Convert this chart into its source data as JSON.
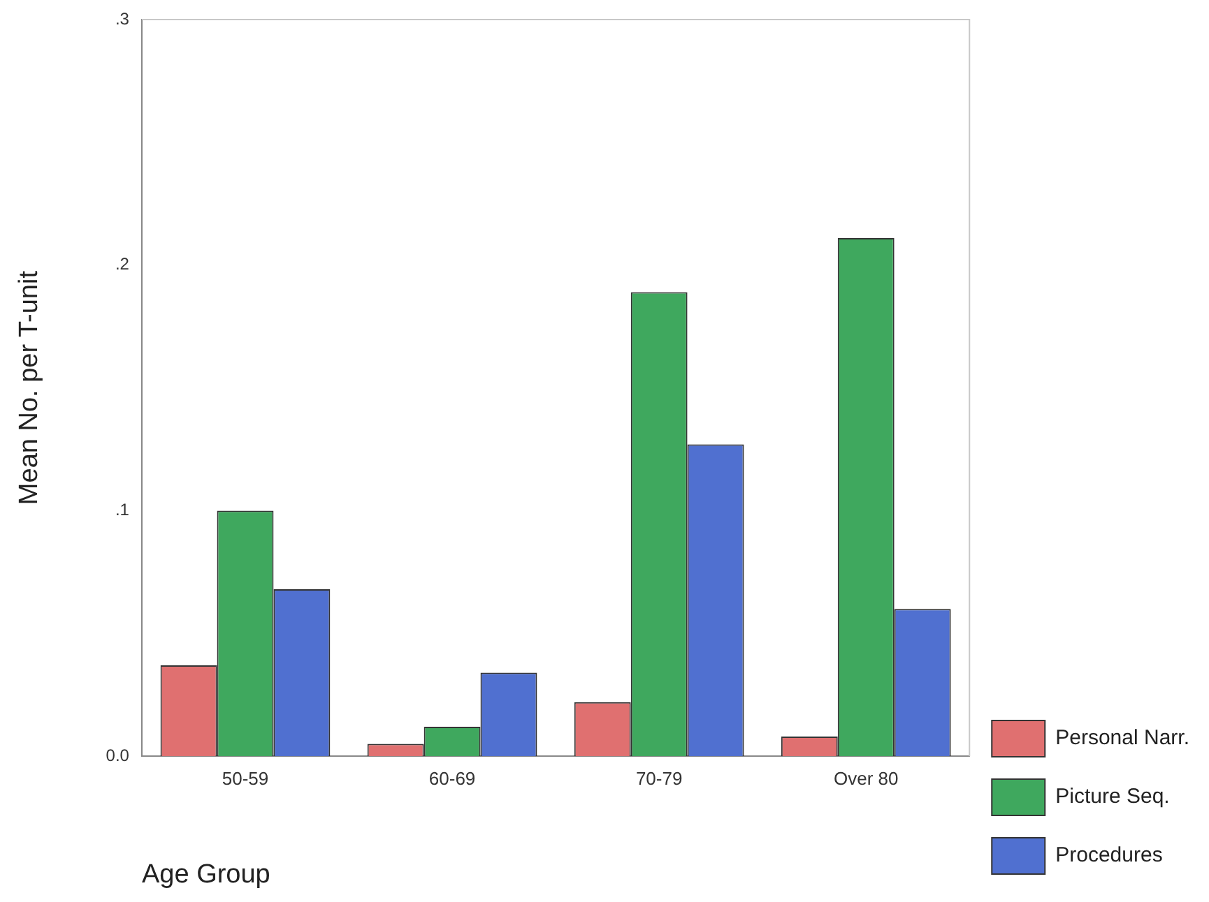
{
  "chart_data": {
    "type": "bar",
    "xlabel": "Age Group",
    "ylabel": "Mean No. per T-unit",
    "categories": [
      "50-59",
      "60-69",
      "70-79",
      "Over 80"
    ],
    "series": [
      {
        "name": "Personal Narr.",
        "color": "#e07070",
        "values": [
          0.037,
          0.005,
          0.022,
          0.008
        ]
      },
      {
        "name": "Picture Seq.",
        "color": "#3fa85e",
        "values": [
          0.1,
          0.012,
          0.189,
          0.211
        ]
      },
      {
        "name": "Procedures",
        "color": "#5070d0",
        "values": [
          0.068,
          0.034,
          0.127,
          0.06
        ]
      }
    ],
    "ylim": [
      0,
      0.3
    ],
    "yticks": [
      {
        "value": 0,
        "label": "0.0"
      },
      {
        "value": 0.1,
        "label": ".1"
      },
      {
        "value": 0.2,
        "label": ".2"
      },
      {
        "value": 0.3,
        "label": ".3"
      }
    ],
    "grid": false,
    "legend": "right"
  }
}
